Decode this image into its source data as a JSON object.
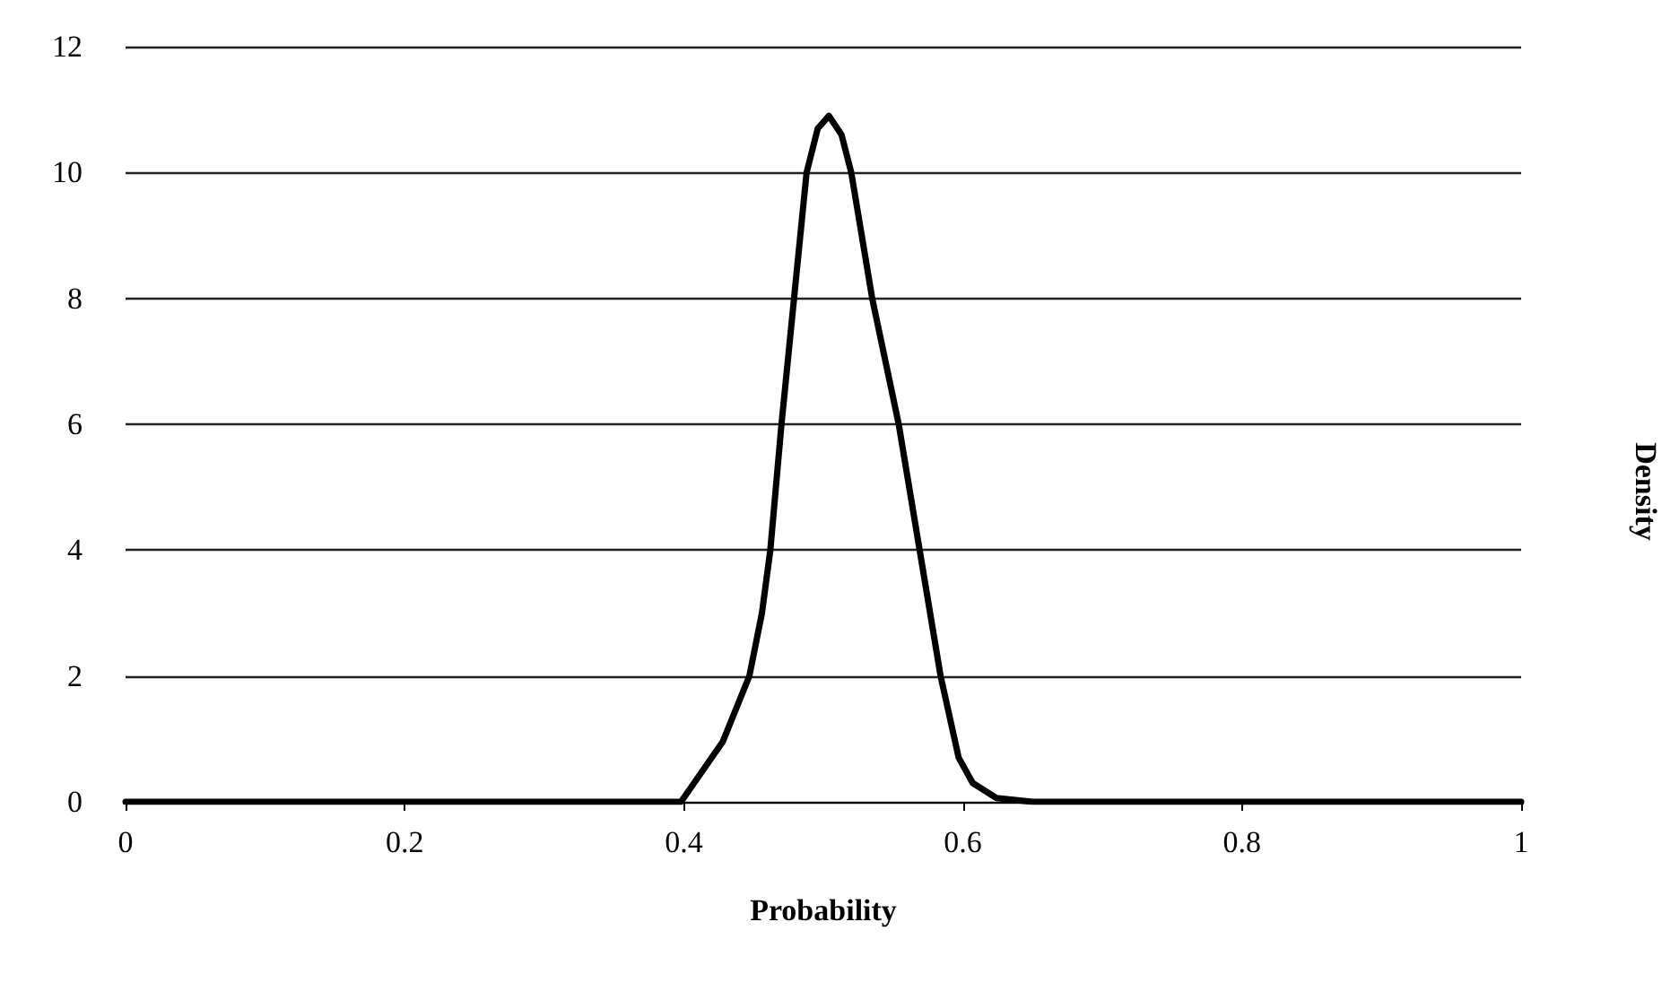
{
  "chart_data": {
    "type": "line",
    "xlabel": "Probability",
    "ylabel": "Density",
    "xlim": [
      0,
      1
    ],
    "xticks": [
      0,
      0.2,
      0.4,
      0.6,
      0.8,
      1
    ],
    "ylim": [
      0,
      12
    ],
    "yticks": [
      0,
      2,
      4,
      6,
      8,
      10,
      12
    ],
    "grid": "y",
    "marker": "none",
    "line_style": "solid",
    "series": [
      {
        "color": "#000000",
        "x": [
          0,
          0.2,
          0.398,
          0.428,
          0.447,
          0.456,
          0.462,
          0.47,
          0.479,
          0.488,
          0.496,
          0.504,
          0.513,
          0.52,
          0.535,
          0.554,
          0.569,
          0.584,
          0.597,
          0.607,
          0.624,
          0.65,
          0.8,
          1
        ],
        "values": [
          0,
          0,
          0,
          0.96,
          2,
          3,
          4,
          6,
          8,
          10,
          10.7,
          10.9,
          10.6,
          10,
          8,
          6,
          4,
          2,
          0.7,
          0.3,
          0.06,
          0,
          0,
          0
        ]
      }
    ]
  }
}
